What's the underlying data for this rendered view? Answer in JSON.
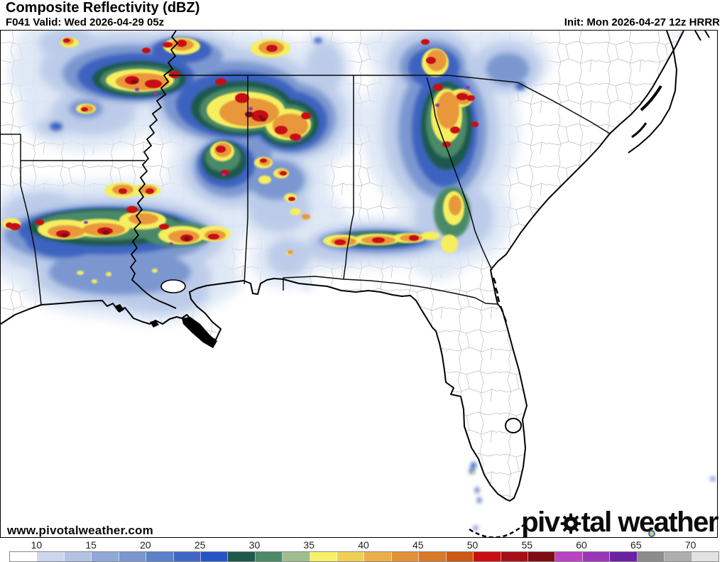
{
  "header": {
    "title": "Composite Reflectivity (dBZ)",
    "forecast_hour_valid": "F041 Valid: Wed 2026-04-29 05z",
    "model_init": "Init: Mon 2026-04-27 12z HRRR"
  },
  "footer": {
    "watermark": "www.pivotalweather.com",
    "logo_text_pre": "piv",
    "logo_text_post": "tal weather"
  },
  "icons": {
    "logo_o": "gear-icon",
    "logo_pin": "location-pin-icon"
  },
  "colorbar": {
    "unit": "dBZ",
    "ticks": [
      "10",
      "15",
      "20",
      "25",
      "30",
      "35",
      "40",
      "45",
      "50",
      "55",
      "60",
      "65",
      "70"
    ],
    "segment_colors": [
      "#ffffff",
      "#ccd7ed",
      "#b2c3e3",
      "#91a9d8",
      "#7b97d0",
      "#5c80c9",
      "#3f66c3",
      "#2653c6",
      "#1c584c",
      "#4c8a68",
      "#9ebe8e",
      "#f7f169",
      "#f0cf55",
      "#eaaf4a",
      "#e39138",
      "#d97a28",
      "#cc5a14",
      "#c90f12",
      "#a50f17",
      "#7d0c13",
      "#b843c3",
      "#9936b5",
      "#6b21a2",
      "#8c8c8c",
      "#aeaeae",
      "#e3e3e3"
    ]
  }
}
